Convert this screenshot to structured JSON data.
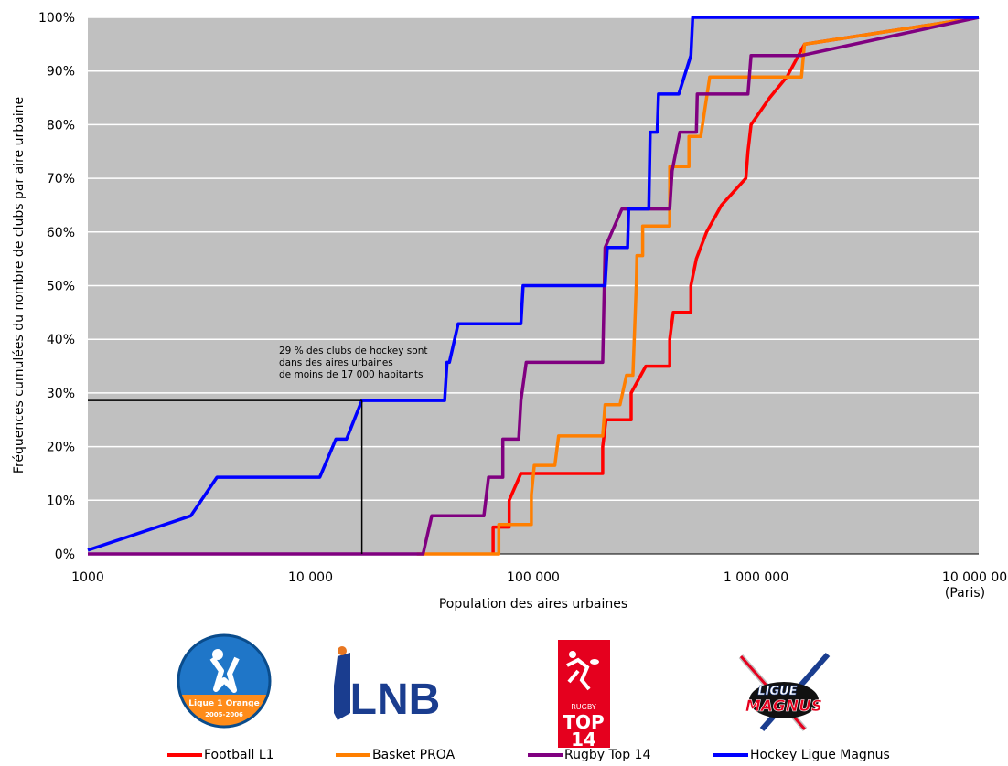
{
  "chart_data": {
    "type": "line",
    "title": "",
    "xlabel": "Population des aires urbaines",
    "ylabel": "Fréquences cumulées du nombre de clubs par aire urbaine",
    "x_scale": "log",
    "xlim": [
      1000,
      10000000
    ],
    "ylim": [
      0,
      100
    ],
    "x_ticks": [
      {
        "value": 1000,
        "label": "1000"
      },
      {
        "value": 10000,
        "label": "10 000"
      },
      {
        "value": 100000,
        "label": "100 000"
      },
      {
        "value": 1000000,
        "label": "1 000 000"
      },
      {
        "value": 10000000,
        "label": "10 000 000"
      }
    ],
    "x_tick_sublabel": "(Paris)",
    "y_ticks": [
      "0%",
      "10%",
      "20%",
      "30%",
      "40%",
      "50%",
      "60%",
      "70%",
      "80%",
      "90%",
      "100%"
    ],
    "grid": true,
    "plot_background": "#c0c0c0",
    "legend_position": "bottom",
    "series": [
      {
        "name": "Football L1",
        "color": "#ff0000",
        "points": [
          [
            66000,
            0
          ],
          [
            66000,
            5
          ],
          [
            78000,
            5
          ],
          [
            78000,
            10
          ],
          [
            88000,
            15
          ],
          [
            205000,
            15
          ],
          [
            205000,
            20
          ],
          [
            212000,
            25
          ],
          [
            275000,
            25
          ],
          [
            275000,
            30
          ],
          [
            320000,
            35
          ],
          [
            410000,
            35
          ],
          [
            410000,
            40
          ],
          [
            425000,
            45
          ],
          [
            510000,
            45
          ],
          [
            510000,
            50
          ],
          [
            540000,
            55
          ],
          [
            600000,
            60
          ],
          [
            700000,
            65
          ],
          [
            900000,
            70
          ],
          [
            920000,
            75
          ],
          [
            950000,
            80
          ],
          [
            1150000,
            85
          ],
          [
            1380000,
            89
          ],
          [
            1650000,
            95
          ],
          [
            10000000,
            100
          ]
        ]
      },
      {
        "name": "Basket PROA",
        "color": "#ff7f00",
        "points": [
          [
            30000,
            0
          ],
          [
            70000,
            0
          ],
          [
            70000,
            5.5
          ],
          [
            98000,
            5.5
          ],
          [
            98000,
            11
          ],
          [
            101000,
            16.5
          ],
          [
            125000,
            16.5
          ],
          [
            130000,
            22
          ],
          [
            205000,
            22
          ],
          [
            210000,
            27.8
          ],
          [
            245000,
            27.8
          ],
          [
            262000,
            33.3
          ],
          [
            280000,
            33.3
          ],
          [
            290000,
            50
          ],
          [
            292000,
            55.6
          ],
          [
            310000,
            55.6
          ],
          [
            310000,
            61.1
          ],
          [
            410000,
            61.1
          ],
          [
            410000,
            72.2
          ],
          [
            500000,
            72.2
          ],
          [
            500000,
            77.8
          ],
          [
            565000,
            77.8
          ],
          [
            620000,
            88.9
          ],
          [
            1600000,
            88.9
          ],
          [
            1650000,
            95
          ],
          [
            10000000,
            100
          ]
        ]
      },
      {
        "name": "Rugby Top 14",
        "color": "#800080",
        "points": [
          [
            1000,
            0
          ],
          [
            32000,
            0
          ],
          [
            35000,
            7.1
          ],
          [
            60000,
            7.1
          ],
          [
            63000,
            14.3
          ],
          [
            73000,
            14.3
          ],
          [
            73000,
            21.4
          ],
          [
            86000,
            21.4
          ],
          [
            88000,
            28.6
          ],
          [
            93000,
            35.7
          ],
          [
            205000,
            35.7
          ],
          [
            210000,
            57.1
          ],
          [
            250000,
            64.3
          ],
          [
            320000,
            64.3
          ],
          [
            410000,
            64.3
          ],
          [
            420000,
            71.4
          ],
          [
            455000,
            78.6
          ],
          [
            540000,
            78.6
          ],
          [
            545000,
            85.7
          ],
          [
            920000,
            85.7
          ],
          [
            950000,
            92.9
          ],
          [
            1600000,
            92.9
          ],
          [
            10000000,
            100
          ]
        ]
      },
      {
        "name": "Hockey Ligue Magnus",
        "color": "#0000ff",
        "points": [
          [
            1000,
            0.7
          ],
          [
            2900,
            7.1
          ],
          [
            3800,
            14.3
          ],
          [
            11000,
            14.3
          ],
          [
            13000,
            21.4
          ],
          [
            14500,
            21.4
          ],
          [
            17000,
            28.6
          ],
          [
            40000,
            28.6
          ],
          [
            41000,
            35.7
          ],
          [
            42000,
            35.7
          ],
          [
            46000,
            42.9
          ],
          [
            88000,
            42.9
          ],
          [
            90000,
            50
          ],
          [
            210000,
            50
          ],
          [
            215000,
            57.1
          ],
          [
            265000,
            57.1
          ],
          [
            268000,
            64.3
          ],
          [
            330000,
            64.3
          ],
          [
            335000,
            78.6
          ],
          [
            360000,
            78.6
          ],
          [
            365000,
            85.7
          ],
          [
            450000,
            85.7
          ],
          [
            510000,
            92.9
          ],
          [
            520000,
            100
          ],
          [
            10000000,
            100
          ]
        ]
      }
    ],
    "annotation": {
      "lines": [
        "29 % des clubs de hockey sont",
        "dans des aires urbaines",
        "de moins de 17 000 habitants"
      ],
      "x": 17000,
      "y": 28.6
    }
  },
  "logos": [
    {
      "name": "Ligue 1 Orange",
      "text_top": "Ligue 1 Orange",
      "text_bottom": "2005-2006"
    },
    {
      "name": "LNB",
      "text": "LNB"
    },
    {
      "name": "Rugby Top 14",
      "text_top": "RUGBY",
      "text_mid": "TOP",
      "text_bottom": "14"
    },
    {
      "name": "Ligue Magnus",
      "text_top": "LIGUE",
      "text_bottom": "MAGNUS"
    }
  ]
}
